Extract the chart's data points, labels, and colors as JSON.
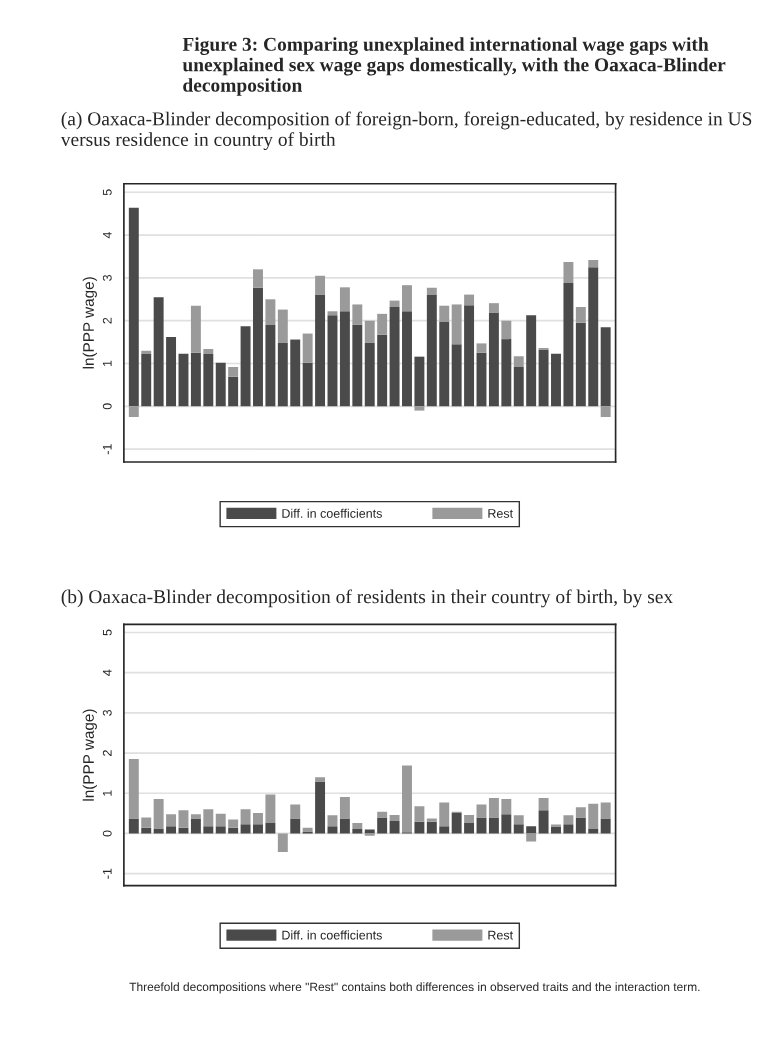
{
  "chart_data": [
    {
      "type": "bar",
      "stacked": true,
      "title": "(a) Oaxaca-Blinder decomposition of foreign-born, foreign-educated, by residence in US versus residence in country of birth",
      "ylabel": "ln(PPP wage)",
      "annotations": [
        "Figure 3: Comparing unexplained international wage gaps with unexplained sex wage gaps domestically, with the Oaxaca-Blinder decomposition"
      ],
      "categories": [
        null,
        null,
        null,
        null,
        null,
        null,
        null,
        null,
        null,
        null,
        null,
        null,
        null,
        null,
        null,
        null,
        null,
        null,
        null,
        null,
        null,
        null,
        null,
        null,
        null,
        null,
        null,
        null,
        null,
        null,
        null,
        null,
        null,
        null,
        null,
        null,
        null,
        null,
        null
      ],
      "series": [
        {
          "name": "Diff. in coefficients",
          "color": "#4a4a4a",
          "values": [
            4.64,
            1.22,
            2.55,
            1.62,
            1.23,
            1.25,
            1.22,
            1.02,
            0.69,
            1.87,
            2.77,
            1.9,
            1.48,
            1.56,
            1.02,
            2.61,
            2.13,
            2.22,
            1.91,
            1.48,
            1.67,
            2.32,
            2.22,
            1.16,
            2.6,
            1.98,
            1.45,
            2.36,
            1.25,
            2.19,
            1.57,
            0.92,
            2.13,
            1.33,
            1.23,
            2.88,
            1.95,
            3.25,
            1.85
          ]
        },
        {
          "name": "Rest",
          "color": "#9a9a9a",
          "values": [
            -0.25,
            0.08,
            0,
            0,
            0,
            1.1,
            0.12,
            0,
            0.23,
            0,
            0.43,
            0.6,
            0.78,
            0,
            0.68,
            0.44,
            0.09,
            0.56,
            0.47,
            0.52,
            0.49,
            0.15,
            0.61,
            -0.1,
            0.17,
            0.37,
            0.93,
            0.25,
            0.22,
            0.22,
            0.43,
            0.25,
            0,
            0.03,
            0,
            0.49,
            0.37,
            0.17,
            -0.25
          ]
        }
      ],
      "ylim": [
        -1.3,
        5.2
      ],
      "yticks": [
        -1,
        0,
        1,
        2,
        3,
        4,
        5
      ],
      "grid": "y",
      "legend": "bottom"
    },
    {
      "type": "bar",
      "stacked": true,
      "title": "(b) Oaxaca-Blinder decomposition of residents in their country of birth, by sex",
      "ylabel": "ln(PPP wage)",
      "annotations": [
        "Threefold decompositions where \"Rest\" contains both differences in observed traits and the interaction term."
      ],
      "categories": [
        null,
        null,
        null,
        null,
        null,
        null,
        null,
        null,
        null,
        null,
        null,
        null,
        null,
        null,
        null,
        null,
        null,
        null,
        null,
        null,
        null,
        null,
        null,
        null,
        null,
        null,
        null,
        null,
        null,
        null,
        null,
        null,
        null,
        null,
        null,
        null,
        null,
        null,
        null
      ],
      "series": [
        {
          "name": "Diff. in coefficients",
          "color": "#4a4a4a",
          "values": [
            0.37,
            0.14,
            0.11,
            0.18,
            0.14,
            0.37,
            0.18,
            0.18,
            0.14,
            0.23,
            0.23,
            0.26,
            0,
            0.37,
            0.05,
            1.29,
            0.18,
            0.37,
            0.11,
            0.1,
            0.4,
            0.31,
            0.03,
            0.29,
            0.29,
            0.18,
            0.51,
            0.26,
            0.4,
            0.4,
            0.48,
            0.23,
            0.18,
            0.58,
            0.17,
            0.23,
            0.4,
            0.11,
            0.37
          ]
        },
        {
          "name": "Rest",
          "color": "#9a9a9a",
          "values": [
            1.48,
            0.26,
            0.75,
            0.3,
            0.44,
            0.11,
            0.42,
            0.31,
            0.21,
            0.37,
            0.28,
            0.71,
            -0.46,
            0.35,
            0.09,
            0.11,
            0.27,
            0.54,
            0.15,
            -0.06,
            0.14,
            0.15,
            1.66,
            0.39,
            0.08,
            0.59,
            0.03,
            0.2,
            0.32,
            0.48,
            0.38,
            0.22,
            -0.2,
            0.3,
            0.05,
            0.22,
            0.25,
            0.63,
            0.4
          ]
        }
      ],
      "ylim": [
        -1.3,
        5.2
      ],
      "yticks": [
        -1,
        0,
        1,
        2,
        3,
        4,
        5
      ],
      "grid": "y",
      "legend": "bottom"
    }
  ]
}
